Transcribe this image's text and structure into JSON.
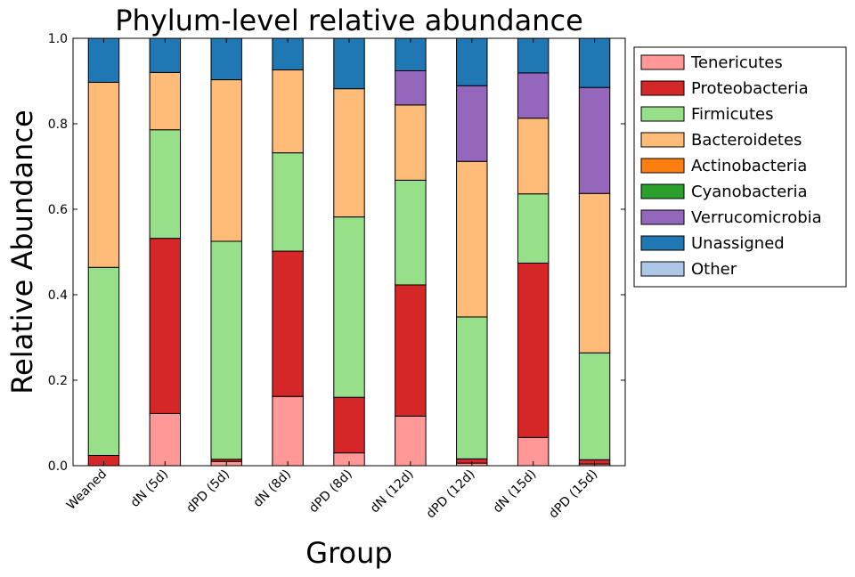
{
  "chart_data": {
    "type": "bar",
    "stacked": true,
    "title": "Phylum-level relative abundance",
    "xlabel": "Group",
    "ylabel": "Relative Abundance",
    "ylim": [
      0,
      1
    ],
    "yticks": [
      "0.0",
      "0.2",
      "0.4",
      "0.6",
      "0.8",
      "1.0"
    ],
    "grid": false,
    "legend_position": "outside-right",
    "categories": [
      "Weaned",
      "dN (5d)",
      "dPD (5d)",
      "dN (8d)",
      "dPD (8d)",
      "dN (12d)",
      "dPD (12d)",
      "dN (15d)",
      "dPD (15d)"
    ],
    "series": [
      {
        "name": "Tenericutes",
        "color": "#ff9896",
        "values": [
          0.0,
          0.122,
          0.01,
          0.162,
          0.03,
          0.116,
          0.006,
          0.066,
          0.004
        ]
      },
      {
        "name": "Proteobacteria",
        "color": "#d62728",
        "values": [
          0.024,
          0.41,
          0.005,
          0.34,
          0.13,
          0.307,
          0.01,
          0.408,
          0.01
        ]
      },
      {
        "name": "Firmicutes",
        "color": "#98df8a",
        "values": [
          0.44,
          0.254,
          0.51,
          0.23,
          0.422,
          0.245,
          0.332,
          0.162,
          0.25
        ]
      },
      {
        "name": "Bacteroidetes",
        "color": "#ffbb78",
        "values": [
          0.433,
          0.134,
          0.378,
          0.194,
          0.3,
          0.176,
          0.364,
          0.177,
          0.373
        ]
      },
      {
        "name": "Actinobacteria",
        "color": "#ff7f0e",
        "values": [
          0,
          0,
          0,
          0,
          0,
          0,
          0,
          0,
          0
        ]
      },
      {
        "name": "Cyanobacteria",
        "color": "#2ca02c",
        "values": [
          0,
          0,
          0,
          0,
          0,
          0,
          0,
          0,
          0
        ]
      },
      {
        "name": "Verrucomicrobia",
        "color": "#9467bd",
        "values": [
          0,
          0,
          0,
          0,
          0,
          0.08,
          0.177,
          0.106,
          0.248
        ]
      },
      {
        "name": "Unassigned",
        "color": "#1f77b4",
        "values": [
          0.103,
          0.08,
          0.097,
          0.074,
          0.118,
          0.076,
          0.111,
          0.081,
          0.115
        ]
      },
      {
        "name": "Other",
        "color": "#aec7e8",
        "values": [
          0,
          0,
          0,
          0,
          0,
          0,
          0,
          0,
          0
        ]
      }
    ]
  }
}
